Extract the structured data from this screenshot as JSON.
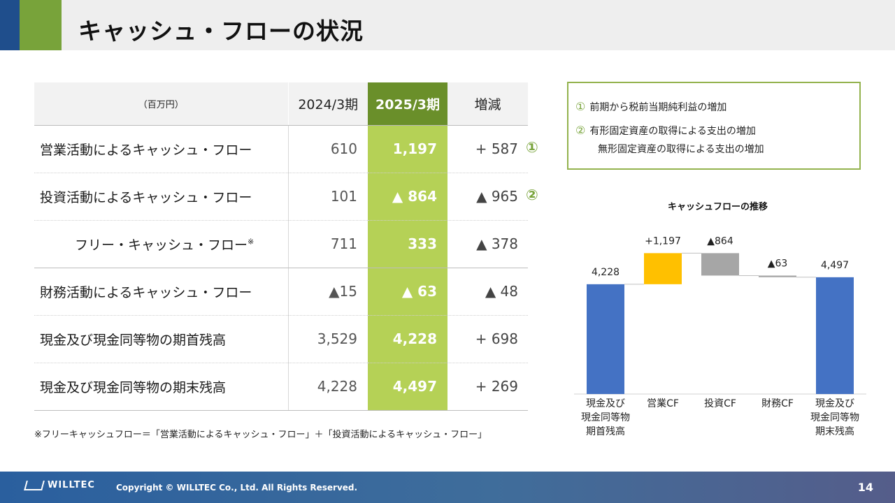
{
  "header": {
    "title": "キャッシュ・フローの状況"
  },
  "table": {
    "unit": "（百万円）",
    "col_2024": "2024/3期",
    "col_2025": "2025/3期",
    "col_change": "増減",
    "rows": [
      {
        "label": "営業活動によるキャッシュ・フロー",
        "v2024": "610",
        "v2025": "1,197",
        "change": "+ 587",
        "note": "①"
      },
      {
        "label": "投資活動によるキャッシュ・フロー",
        "v2024": "101",
        "v2025": "▲ 864",
        "change": "▲ 965",
        "note": "②"
      },
      {
        "label": "フリー・キャッシュ・フロー",
        "label_sup": "※",
        "v2024": "711",
        "v2025": "333",
        "change": "▲ 378"
      },
      {
        "label": "財務活動によるキャッシュ・フロー",
        "v2024": "▲15",
        "v2025": "▲ 63",
        "change": "▲ 48"
      },
      {
        "label": "現金及び現金同等物の期首残高",
        "v2024": "3,529",
        "v2025": "4,228",
        "change": "+ 698"
      },
      {
        "label": "現金及び現金同等物の期末残高",
        "v2024": "4,228",
        "v2025": "4,497",
        "change": "+ 269"
      }
    ],
    "footnote": "※フリーキャッシュフロー＝「営業活動によるキャッシュ・フロー」＋「投資活動によるキャッシュ・フロー」"
  },
  "notes": [
    {
      "num": "①",
      "text": "前期から税前当期純利益の増加"
    },
    {
      "num": "②",
      "text": "有形固定資産の取得による支出の増加"
    },
    {
      "num": "",
      "text": "無形固定資産の取得による支出の増加"
    }
  ],
  "chart_data": {
    "type": "waterfall",
    "title": "キャッシュフローの推移",
    "categories": [
      "現金及び\n現金同等物\n期首残高",
      "営業CF",
      "投資CF",
      "財務CF",
      "現金及び\n現金同等物\n期末残高"
    ],
    "values": [
      4228,
      1197,
      -864,
      -63,
      4497
    ],
    "value_labels": [
      "4,228",
      "+1,197",
      "▲864",
      "▲63",
      "4,497"
    ],
    "kinds": [
      "total",
      "delta",
      "delta",
      "delta",
      "total"
    ],
    "colors": [
      "#4472c4",
      "#ffc000",
      "#a6a6a6",
      "#a6a6a6",
      "#4472c4"
    ]
  },
  "footer": {
    "logo": "WILLTEC",
    "copyright": "Copyright © WILLTEC Co., Ltd. All Rights Reserved.",
    "page": "14"
  }
}
